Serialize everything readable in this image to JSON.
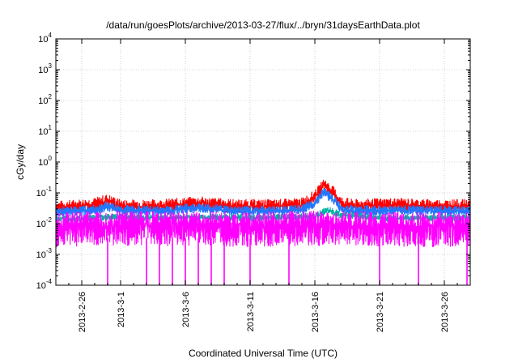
{
  "chart_data": {
    "type": "line",
    "title": "/data/run/goesPlots/archive/2013-03-27/flux/../bryn/31daysEarthData.plot",
    "xlabel": "Coordinated Universal Time (UTC)",
    "ylabel": "cGy/day",
    "log_y": true,
    "grid": true,
    "legend": "none",
    "xlim": [
      "2013-02-24",
      "2013-03-28"
    ],
    "ylim": [
      0.0001,
      10000
    ],
    "x_ticks": [
      "2013-2-26",
      "2013-3-1",
      "2013-3-6",
      "2013-3-11",
      "2013-3-16",
      "2013-3-21",
      "2013-3-26"
    ],
    "x_tick_dates": [
      "2013-02-26",
      "2013-03-01",
      "2013-03-06",
      "2013-03-11",
      "2013-03-16",
      "2013-03-21",
      "2013-03-26"
    ],
    "y_ticks": [
      {
        "base": "10",
        "exp": "-4"
      },
      {
        "base": "10",
        "exp": "-3"
      },
      {
        "base": "10",
        "exp": "-2"
      },
      {
        "base": "10",
        "exp": "-1"
      },
      {
        "base": "10",
        "exp": "0"
      },
      {
        "base": "10",
        "exp": "1"
      },
      {
        "base": "10",
        "exp": "2"
      },
      {
        "base": "10",
        "exp": "3"
      },
      {
        "base": "10",
        "exp": "4"
      }
    ],
    "series": [
      {
        "color": "#ff0000",
        "x": [
          "2013-02-24",
          "2013-02-27",
          "2013-02-28",
          "2013-03-01",
          "2013-03-04",
          "2013-03-07",
          "2013-03-10",
          "2013-03-13",
          "2013-03-15",
          "2013-03-16",
          "2013-03-16T18",
          "2013-03-17",
          "2013-03-17T12",
          "2013-03-18",
          "2013-03-19",
          "2013-03-22",
          "2013-03-25",
          "2013-03-28"
        ],
        "y": [
          0.035,
          0.045,
          0.06,
          0.04,
          0.04,
          0.05,
          0.04,
          0.04,
          0.045,
          0.08,
          0.2,
          0.15,
          0.1,
          0.05,
          0.04,
          0.045,
          0.04,
          0.04
        ]
      },
      {
        "color": "#2277ff",
        "x": [
          "2013-02-24",
          "2013-02-27",
          "2013-02-28",
          "2013-03-01",
          "2013-03-04",
          "2013-03-07",
          "2013-03-10",
          "2013-03-13",
          "2013-03-15",
          "2013-03-16",
          "2013-03-16T18",
          "2013-03-17",
          "2013-03-17T12",
          "2013-03-18",
          "2013-03-19",
          "2013-03-22",
          "2013-03-25",
          "2013-03-28"
        ],
        "y": [
          0.025,
          0.03,
          0.04,
          0.03,
          0.028,
          0.035,
          0.028,
          0.028,
          0.03,
          0.05,
          0.12,
          0.09,
          0.06,
          0.035,
          0.028,
          0.03,
          0.028,
          0.028
        ]
      },
      {
        "color": "#00b3a4",
        "x": [
          "2013-02-24",
          "2013-02-28",
          "2013-03-04",
          "2013-03-08",
          "2013-03-12",
          "2013-03-16",
          "2013-03-17",
          "2013-03-18",
          "2013-03-22",
          "2013-03-28"
        ],
        "y": [
          0.015,
          0.017,
          0.016,
          0.017,
          0.016,
          0.018,
          0.03,
          0.02,
          0.016,
          0.016
        ]
      },
      {
        "color": "#ff00ff",
        "x": [
          "2013-02-24",
          "2013-03-01",
          "2013-03-06",
          "2013-03-11",
          "2013-03-16",
          "2013-03-21",
          "2013-03-28"
        ],
        "y": [
          0.01,
          0.011,
          0.011,
          0.01,
          0.011,
          0.01,
          0.01
        ]
      }
    ],
    "dropouts": [
      "2013-02-28",
      "2013-03-03",
      "2013-03-04",
      "2013-03-05",
      "2013-03-06",
      "2013-03-07",
      "2013-03-08",
      "2013-03-09",
      "2013-03-11",
      "2013-03-14",
      "2013-03-21",
      "2013-03-24",
      "2013-03-28"
    ]
  }
}
